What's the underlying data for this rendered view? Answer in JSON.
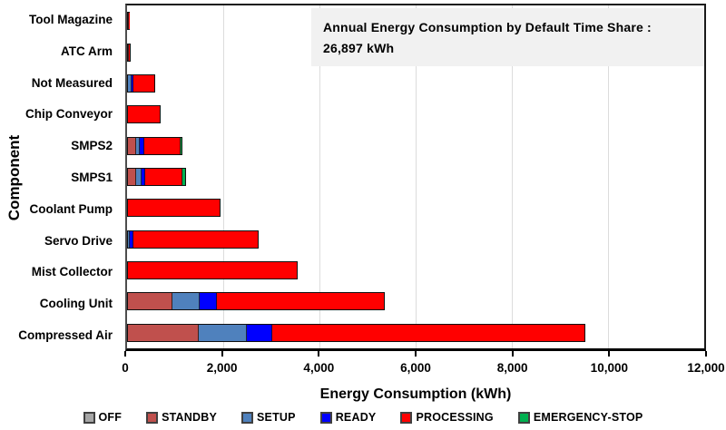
{
  "title_box": {
    "line1": "Annual Energy Consumption by Default Time Share :",
    "line2": "26,897 kWh"
  },
  "axes": {
    "x_title": "Energy Consumption (kWh)",
    "y_title": "Component",
    "x_ticks": [
      "0",
      "2,000",
      "4,000",
      "6,000",
      "8,000",
      "10,000",
      "12,000"
    ]
  },
  "legend": {
    "items": [
      {
        "label": "OFF",
        "color": "#A6A6A6"
      },
      {
        "label": "STANDBY",
        "color": "#C0504D"
      },
      {
        "label": "SETUP",
        "color": "#4F81BD"
      },
      {
        "label": "READY",
        "color": "#0000FF"
      },
      {
        "label": "PROCESSING",
        "color": "#FF0000"
      },
      {
        "label": "EMERGENCY-STOP",
        "color": "#00B050"
      }
    ]
  },
  "chart_data": {
    "type": "bar",
    "orientation": "horizontal",
    "stacked": true,
    "title": "Annual Energy Consumption by Default Time Share : 26,897 kWh",
    "total_kwh": "26,897",
    "xlabel": "Energy Consumption (kWh)",
    "ylabel": "Component",
    "xlim": [
      0,
      12000
    ],
    "grid": "vertical gridlines every 2,000 kWh",
    "legend_position": "bottom",
    "categories": [
      "Tool Magazine",
      "ATC Arm",
      "Not Measured",
      "Chip Conveyor",
      "SMPS2",
      "SMPS1",
      "Coolant Pump",
      "Servo Drive",
      "Mist Collector",
      "Cooling Unit",
      "Compressed Air"
    ],
    "series": [
      {
        "name": "OFF",
        "color": "#A6A6A6",
        "values": [
          0,
          0,
          0,
          0,
          0,
          0,
          0,
          0,
          0,
          0,
          0
        ]
      },
      {
        "name": "STANDBY",
        "color": "#C0504D",
        "values": [
          35,
          45,
          0,
          0,
          185,
          180,
          0,
          0,
          0,
          930,
          1480
        ]
      },
      {
        "name": "SETUP",
        "color": "#4F81BD",
        "values": [
          0,
          0,
          80,
          0,
          75,
          110,
          0,
          40,
          0,
          580,
          1010
        ]
      },
      {
        "name": "READY",
        "color": "#0000FF",
        "values": [
          0,
          0,
          40,
          0,
          95,
          80,
          0,
          70,
          0,
          345,
          520
        ]
      },
      {
        "name": "PROCESSING",
        "color": "#FF0000",
        "values": [
          22,
          25,
          470,
          700,
          770,
          790,
          1940,
          2630,
          3550,
          3495,
          6510
        ]
      },
      {
        "name": "EMERGENCY-STOP",
        "color": "#00B050",
        "values": [
          0,
          0,
          0,
          0,
          35,
          60,
          0,
          0,
          0,
          0,
          0
        ]
      }
    ],
    "totals": [
      57,
      70,
      590,
      700,
      1160,
      1220,
      1940,
      2740,
      3550,
      5350,
      9520
    ]
  }
}
